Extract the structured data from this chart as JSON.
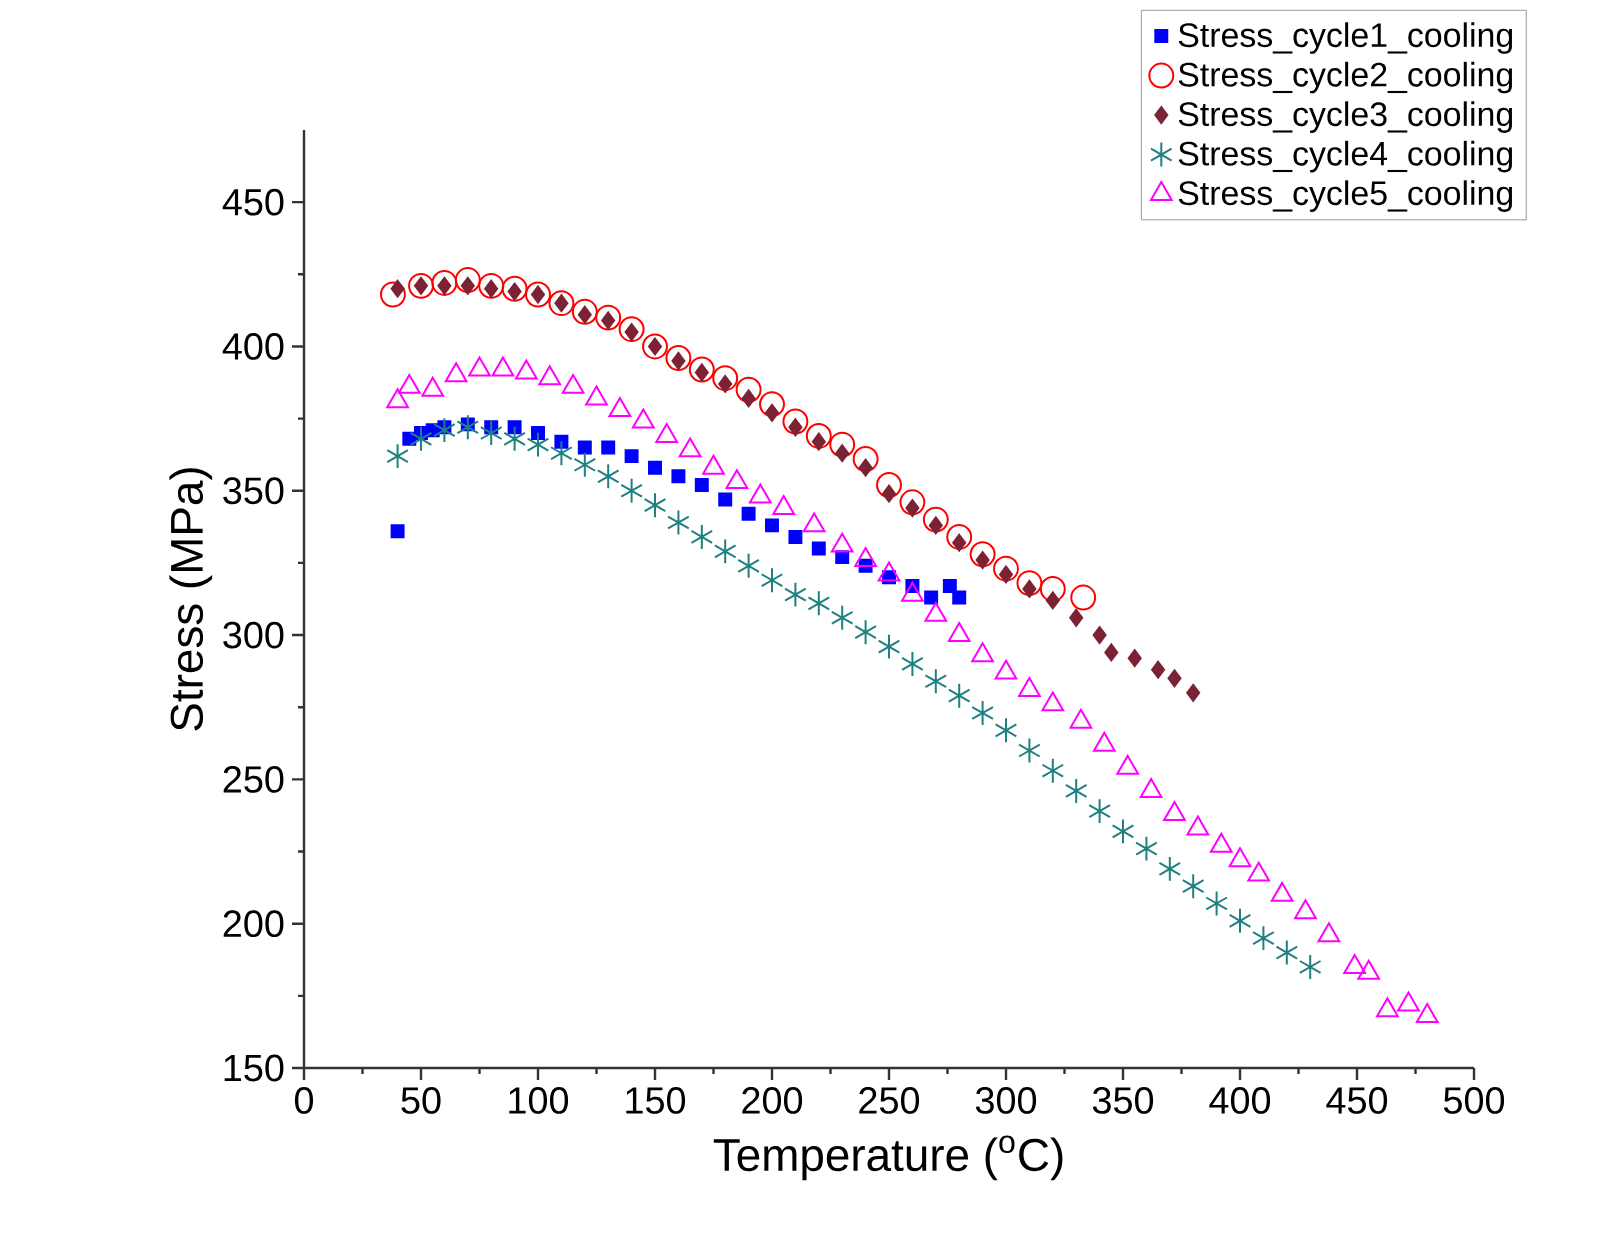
{
  "chart_data": {
    "type": "scatter",
    "xlabel": "Temperature ($^{o}$C)",
    "ylabel": "Stress (MPa)",
    "xlim": [
      0,
      500
    ],
    "ylim": [
      150,
      475
    ],
    "xticks": [
      0,
      50,
      100,
      150,
      200,
      250,
      300,
      350,
      400,
      450,
      500
    ],
    "yticks": [
      150,
      200,
      250,
      300,
      350,
      400,
      450
    ],
    "grid": false,
    "legend": "top right",
    "series": [
      {
        "name": "Stress_cycle1_cooling",
        "color": "#0000ff",
        "marker": "square",
        "x": [
          40,
          45,
          50,
          55,
          60,
          70,
          80,
          90,
          100,
          110,
          120,
          130,
          140,
          150,
          160,
          170,
          180,
          190,
          200,
          210,
          220,
          230,
          240,
          250,
          260,
          268,
          276,
          280
        ],
        "values": [
          336,
          368,
          370,
          371,
          372,
          373,
          372,
          372,
          370,
          367,
          365,
          365,
          362,
          358,
          355,
          352,
          347,
          342,
          338,
          334,
          330,
          327,
          324,
          320,
          317,
          313,
          317,
          313
        ]
      },
      {
        "name": "Stress_cycle2_cooling",
        "color": "#ff0000",
        "marker": "circle",
        "x": [
          38,
          50,
          60,
          70,
          80,
          90,
          100,
          110,
          120,
          130,
          140,
          150,
          160,
          170,
          180,
          190,
          200,
          210,
          220,
          230,
          240,
          250,
          260,
          270,
          280,
          290,
          300,
          310,
          320,
          333
        ],
        "values": [
          418,
          421,
          422,
          423,
          421,
          420,
          418,
          415,
          412,
          410,
          406,
          400,
          396,
          392,
          389,
          385,
          380,
          374,
          369,
          366,
          361,
          352,
          346,
          340,
          334,
          328,
          323,
          318,
          316,
          313
        ]
      },
      {
        "name": "Stress_cycle3_cooling",
        "color": "#7b2335",
        "marker": "diamond",
        "x": [
          40,
          50,
          60,
          70,
          80,
          90,
          100,
          110,
          120,
          130,
          140,
          150,
          160,
          170,
          180,
          190,
          200,
          210,
          220,
          230,
          240,
          250,
          260,
          270,
          280,
          290,
          300,
          310,
          320,
          330,
          340,
          345,
          355,
          365,
          372,
          380
        ],
        "values": [
          420,
          421,
          421,
          421,
          420,
          419,
          418,
          415,
          411,
          409,
          405,
          400,
          395,
          391,
          387,
          382,
          377,
          372,
          367,
          363,
          358,
          349,
          344,
          338,
          332,
          326,
          321,
          316,
          312,
          306,
          300,
          294,
          292,
          288,
          285,
          280
        ]
      },
      {
        "name": "Stress_cycle4_cooling",
        "color": "#1e8080",
        "marker": "cross",
        "x": [
          40,
          50,
          60,
          70,
          80,
          90,
          100,
          110,
          120,
          130,
          140,
          150,
          160,
          170,
          180,
          190,
          200,
          210,
          220,
          230,
          240,
          250,
          260,
          270,
          280,
          290,
          300,
          310,
          320,
          330,
          340,
          350,
          360,
          370,
          380,
          390,
          400,
          410,
          420,
          430
        ],
        "values": [
          362,
          368,
          371,
          372,
          370,
          368,
          366,
          363,
          359,
          355,
          350,
          345,
          339,
          334,
          329,
          324,
          319,
          314,
          311,
          306,
          301,
          296,
          290,
          284,
          279,
          273,
          267,
          260,
          253,
          246,
          239,
          232,
          226,
          219,
          213,
          207,
          201,
          195,
          190,
          185
        ]
      },
      {
        "name": "Stress_cycle5_cooling",
        "color": "#ff00ff",
        "marker": "triangle",
        "x": [
          40,
          45,
          55,
          65,
          75,
          85,
          95,
          105,
          115,
          125,
          135,
          145,
          155,
          165,
          175,
          185,
          195,
          205,
          218,
          230,
          240,
          250,
          260,
          270,
          280,
          290,
          300,
          310,
          320,
          332,
          342,
          352,
          362,
          372,
          382,
          392,
          400,
          408,
          418,
          428,
          438,
          449,
          455,
          463,
          472,
          480
        ],
        "values": [
          381,
          386,
          385,
          390,
          392,
          392,
          391,
          389,
          386,
          382,
          378,
          374,
          369,
          364,
          358,
          353,
          348,
          344,
          338,
          331,
          326,
          321,
          314,
          307,
          300,
          293,
          287,
          281,
          276,
          270,
          262,
          254,
          246,
          238,
          233,
          227,
          222,
          217,
          210,
          204,
          196,
          185,
          183,
          170,
          172,
          168
        ]
      }
    ]
  }
}
